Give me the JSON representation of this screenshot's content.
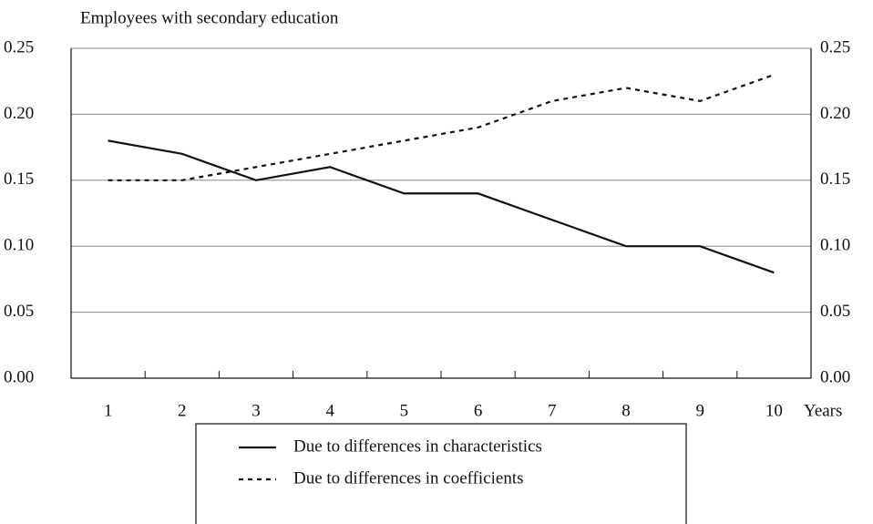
{
  "chart_data": {
    "type": "line",
    "title": "Employees with secondary education",
    "x_label": "Years",
    "categories": [
      "1",
      "2",
      "3",
      "4",
      "5",
      "6",
      "7",
      "8",
      "9",
      "10"
    ],
    "series": [
      {
        "name": "Due to differences in characteristics",
        "color": "#111111",
        "style": "solid",
        "values": [
          0.18,
          0.17,
          0.15,
          0.16,
          0.14,
          0.14,
          0.12,
          0.1,
          0.1,
          0.08
        ]
      },
      {
        "name": "Due to differences in coefficients",
        "color": "#111111",
        "style": "dashed",
        "values": [
          0.15,
          0.15,
          0.16,
          0.17,
          0.18,
          0.19,
          0.21,
          0.22,
          0.21,
          0.23
        ]
      }
    ],
    "ylim": [
      0,
      0.25
    ],
    "yticks": [
      {
        "value": 0,
        "label": "0.00"
      },
      {
        "value": 0.05,
        "label": "0.05"
      },
      {
        "value": 0.1,
        "label": "0.10"
      },
      {
        "value": 0.15,
        "label": "0.15"
      },
      {
        "value": 0.2,
        "label": "0.20"
      },
      {
        "value": 0.25,
        "label": "0.25"
      }
    ],
    "grid": true,
    "legend": "bottom"
  }
}
